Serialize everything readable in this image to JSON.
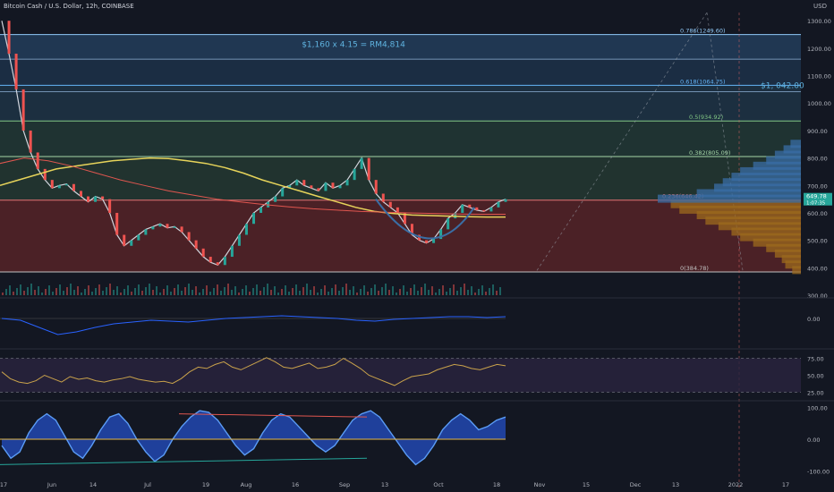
{
  "header": {
    "symbol_title": "Bitcoin Cash / U.S. Dollar, 12h, COINBASE",
    "currency": "USD"
  },
  "colors": {
    "background": "#131722",
    "fib_0": "#7a2a2a",
    "fib_236": "#7a2a2a",
    "fib_382": "#2e4a3a",
    "fib_500": "#2a4a40",
    "fib_618": "#24445a",
    "fib_786": "#22405e",
    "ma_yellow": "#e6d35a",
    "ma_red": "#e0564f",
    "volume_profile_blue": "#3a6ea5",
    "volume_profile_orange": "#9c6a1e",
    "bull_candle": "#26a69a",
    "bear_candle": "#ef5350",
    "rsi_line": "#c9a24b",
    "rsi_bg": "#2a2440",
    "price_tag": "#26a69a"
  },
  "annotations": {
    "conversion_text": "$1,160 x 4.15 = RM4,814",
    "price_target_text": "$1,  042.00"
  },
  "current_price": {
    "value": "649.78",
    "countdown": "1:07:35"
  },
  "chart_data": {
    "type": "line",
    "title": "Bitcoin Cash / U.S. Dollar, 12h, COINBASE",
    "xlabel": "",
    "ylabel": "",
    "x_ticks": [
      "17",
      "Jun",
      "14",
      "Jul",
      "19",
      "Aug",
      "16",
      "Sep",
      "13",
      "Oct",
      "18",
      "Nov",
      "15",
      "Dec",
      "13",
      "2022",
      "17"
    ],
    "y_ticks": [
      "1300.00",
      "1200.00",
      "1100.00",
      "1000.00",
      "900.00",
      "800.00",
      "700.00",
      "600.00",
      "500.00",
      "400.00",
      "300.00"
    ],
    "ylim": [
      300,
      1330
    ],
    "fib_levels": [
      {
        "label": "0(384.78)",
        "value": 384.78
      },
      {
        "label": "0.236(646.42)",
        "value": 646.42
      },
      {
        "label": "0.382(805.09)",
        "value": 805.09
      },
      {
        "label": "0.5(934.92)",
        "value": 934.92
      },
      {
        "label": "0.618(1064.75)",
        "value": 1064.75
      },
      {
        "label": "0.786(1249.60)",
        "value": 1249.6
      }
    ],
    "extra_levels": [
      1160,
      1042
    ],
    "price_series": [
      1300,
      1180,
      1050,
      900,
      820,
      760,
      720,
      690,
      700,
      705,
      680,
      660,
      640,
      660,
      650,
      600,
      520,
      480,
      500,
      520,
      540,
      550,
      560,
      545,
      550,
      530,
      500,
      470,
      440,
      420,
      410,
      440,
      480,
      520,
      560,
      600,
      620,
      640,
      660,
      690,
      700,
      720,
      700,
      690,
      680,
      710,
      690,
      700,
      720,
      760,
      800,
      720,
      670,
      640,
      620,
      600,
      560,
      520,
      500,
      490,
      505,
      540,
      580,
      600,
      630,
      620,
      610,
      605,
      620,
      640,
      649.78
    ],
    "ma_yellow_series": [
      700,
      720,
      740,
      760,
      770,
      780,
      790,
      795,
      800,
      798,
      790,
      780,
      765,
      745,
      720,
      700,
      680,
      660,
      640,
      620,
      605,
      598,
      592,
      590,
      588,
      586,
      585,
      585
    ],
    "ma_red_series": [
      780,
      800,
      790,
      770,
      745,
      720,
      700,
      680,
      665,
      650,
      640,
      630,
      622,
      615,
      610,
      605,
      602,
      600,
      598,
      596,
      595,
      595
    ],
    "volume_profile": [
      {
        "price": 390,
        "vol": 10
      },
      {
        "price": 410,
        "vol": 18
      },
      {
        "price": 430,
        "vol": 22
      },
      {
        "price": 450,
        "vol": 30
      },
      {
        "price": 470,
        "vol": 40
      },
      {
        "price": 490,
        "vol": 55
      },
      {
        "price": 510,
        "vol": 70
      },
      {
        "price": 530,
        "vol": 80
      },
      {
        "price": 550,
        "vol": 95
      },
      {
        "price": 570,
        "vol": 110
      },
      {
        "price": 590,
        "vol": 120
      },
      {
        "price": 610,
        "vol": 140
      },
      {
        "price": 630,
        "vol": 150
      },
      {
        "price": 650,
        "vol": 165
      },
      {
        "price": 670,
        "vol": 120
      },
      {
        "price": 690,
        "vol": 100
      },
      {
        "price": 710,
        "vol": 90
      },
      {
        "price": 730,
        "vol": 80
      },
      {
        "price": 750,
        "vol": 70
      },
      {
        "price": 770,
        "vol": 55
      },
      {
        "price": 790,
        "vol": 40
      },
      {
        "price": 810,
        "vol": 30
      },
      {
        "price": 830,
        "vol": 20
      },
      {
        "price": 850,
        "vol": 12
      }
    ],
    "macd_panel": {
      "y_ticks": [
        "0.00"
      ],
      "series": [
        0,
        -2,
        -10,
        -18,
        -15,
        -10,
        -6,
        -4,
        -2,
        -3,
        -4,
        -2,
        0,
        1,
        2,
        3,
        2,
        1,
        0,
        -2,
        -3,
        -1,
        0,
        1,
        2,
        2,
        1,
        2
      ]
    },
    "rsi_panel": {
      "y_ticks": [
        "75.00",
        "50.00",
        "25.00"
      ],
      "ylim": [
        15,
        85
      ],
      "series": [
        55,
        45,
        40,
        38,
        42,
        50,
        45,
        40,
        48,
        44,
        46,
        42,
        40,
        43,
        45,
        48,
        44,
        42,
        40,
        41,
        38,
        45,
        55,
        62,
        60,
        66,
        70,
        62,
        58,
        64,
        70,
        76,
        70,
        62,
        60,
        64,
        68,
        60,
        62,
        66,
        75,
        68,
        60,
        50,
        45,
        40,
        35,
        42,
        48,
        50,
        52,
        58,
        62,
        66,
        64,
        60,
        58,
        62,
        66,
        64
      ]
    },
    "oscillator_panel": {
      "y_ticks": [
        "100.00",
        "0.00",
        "-100.00"
      ],
      "ylim": [
        -110,
        110
      ],
      "wave_series": [
        -20,
        -60,
        -40,
        20,
        60,
        80,
        60,
        10,
        -40,
        -60,
        -20,
        30,
        70,
        80,
        50,
        0,
        -40,
        -70,
        -50,
        0,
        40,
        70,
        90,
        85,
        60,
        20,
        -20,
        -50,
        -30,
        20,
        60,
        80,
        70,
        40,
        10,
        -20,
        -40,
        -20,
        20,
        60,
        80,
        90,
        70,
        30,
        -10,
        -50,
        -80,
        -60,
        -20,
        30,
        60,
        80,
        60,
        30,
        40,
        60,
        70
      ]
    }
  }
}
